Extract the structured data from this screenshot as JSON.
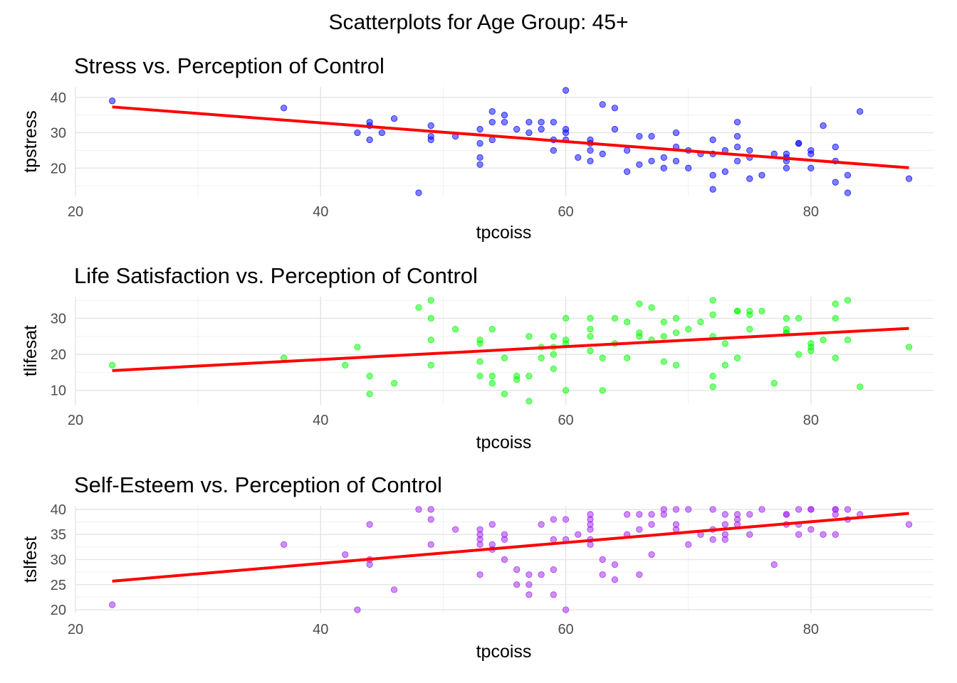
{
  "title": "Scatterplots for Age Group: 45+",
  "colors": {
    "fit_line": "#ff0000"
  },
  "chart_data": [
    {
      "type": "scatter",
      "title": "Stress vs. Perception of Control",
      "xlabel": "tpcoiss",
      "ylabel": "tpstress",
      "xlim": [
        20,
        90
      ],
      "ylim": [
        12,
        43
      ],
      "xticks": [
        20,
        40,
        60,
        80
      ],
      "yticks": [
        20,
        30,
        40
      ],
      "grid": true,
      "point_color": "#0000ff",
      "fit_line": {
        "x": [
          23,
          88
        ],
        "y": [
          37.3,
          20.1
        ]
      },
      "points": [
        [
          23,
          39
        ],
        [
          37,
          37
        ],
        [
          43,
          30
        ],
        [
          44,
          33
        ],
        [
          44,
          32
        ],
        [
          44,
          28
        ],
        [
          45,
          30
        ],
        [
          46,
          34
        ],
        [
          48,
          13
        ],
        [
          49,
          32
        ],
        [
          49,
          29
        ],
        [
          49,
          28
        ],
        [
          51,
          29
        ],
        [
          53,
          31
        ],
        [
          53,
          27
        ],
        [
          53,
          23
        ],
        [
          53,
          21
        ],
        [
          54,
          36
        ],
        [
          54,
          33
        ],
        [
          54,
          28
        ],
        [
          55,
          35
        ],
        [
          55,
          33
        ],
        [
          56,
          31
        ],
        [
          57,
          33
        ],
        [
          57,
          30
        ],
        [
          58,
          33
        ],
        [
          58,
          31
        ],
        [
          59,
          33
        ],
        [
          59,
          28
        ],
        [
          59,
          25
        ],
        [
          60,
          42
        ],
        [
          60,
          31
        ],
        [
          60,
          30
        ],
        [
          60,
          28
        ],
        [
          61,
          23
        ],
        [
          62,
          28
        ],
        [
          62,
          27
        ],
        [
          62,
          25
        ],
        [
          62,
          22
        ],
        [
          63,
          38
        ],
        [
          63,
          24
        ],
        [
          64,
          37
        ],
        [
          64,
          31
        ],
        [
          65,
          25
        ],
        [
          65,
          19
        ],
        [
          66,
          29
        ],
        [
          66,
          21
        ],
        [
          67,
          29
        ],
        [
          67,
          22
        ],
        [
          68,
          23
        ],
        [
          68,
          20
        ],
        [
          69,
          30
        ],
        [
          69,
          26
        ],
        [
          69,
          22
        ],
        [
          70,
          25
        ],
        [
          70,
          20
        ],
        [
          71,
          24
        ],
        [
          72,
          28
        ],
        [
          72,
          24
        ],
        [
          72,
          18
        ],
        [
          72,
          14
        ],
        [
          73,
          25
        ],
        [
          73,
          19
        ],
        [
          74,
          33
        ],
        [
          74,
          29
        ],
        [
          74,
          26
        ],
        [
          74,
          22
        ],
        [
          75,
          25
        ],
        [
          75,
          23
        ],
        [
          75,
          17
        ],
        [
          76,
          18
        ],
        [
          77,
          24
        ],
        [
          78,
          24
        ],
        [
          78,
          23
        ],
        [
          78,
          22
        ],
        [
          78,
          20
        ],
        [
          79,
          27
        ],
        [
          79,
          27
        ],
        [
          80,
          25
        ],
        [
          80,
          24
        ],
        [
          80,
          20
        ],
        [
          81,
          32
        ],
        [
          82,
          26
        ],
        [
          82,
          22
        ],
        [
          82,
          16
        ],
        [
          83,
          18
        ],
        [
          83,
          13
        ],
        [
          84,
          36
        ],
        [
          88,
          17
        ]
      ]
    },
    {
      "type": "scatter",
      "title": "Life Satisfaction vs. Perception of Control",
      "xlabel": "tpcoiss",
      "ylabel": "tlifesat",
      "xlim": [
        20,
        90
      ],
      "ylim": [
        6,
        36
      ],
      "xticks": [
        20,
        40,
        60,
        80
      ],
      "yticks": [
        10,
        20,
        30
      ],
      "grid": true,
      "point_color": "#00ff00",
      "fit_line": {
        "x": [
          23,
          88
        ],
        "y": [
          15.5,
          27.2
        ]
      },
      "points": [
        [
          23,
          17
        ],
        [
          37,
          19
        ],
        [
          42,
          17
        ],
        [
          43,
          22
        ],
        [
          44,
          14
        ],
        [
          44,
          9
        ],
        [
          46,
          12
        ],
        [
          48,
          33
        ],
        [
          49,
          35
        ],
        [
          49,
          30
        ],
        [
          49,
          24
        ],
        [
          49,
          17
        ],
        [
          51,
          27
        ],
        [
          53,
          24
        ],
        [
          53,
          23
        ],
        [
          53,
          18
        ],
        [
          53,
          14
        ],
        [
          54,
          27
        ],
        [
          54,
          14
        ],
        [
          54,
          12
        ],
        [
          55,
          19
        ],
        [
          55,
          9
        ],
        [
          56,
          14
        ],
        [
          56,
          13
        ],
        [
          57,
          25
        ],
        [
          57,
          14
        ],
        [
          57,
          7
        ],
        [
          58,
          22
        ],
        [
          58,
          19
        ],
        [
          59,
          25
        ],
        [
          59,
          22
        ],
        [
          59,
          20
        ],
        [
          59,
          16
        ],
        [
          60,
          30
        ],
        [
          60,
          24
        ],
        [
          60,
          23
        ],
        [
          60,
          10
        ],
        [
          62,
          30
        ],
        [
          62,
          27
        ],
        [
          62,
          25
        ],
        [
          62,
          21
        ],
        [
          63,
          19
        ],
        [
          63,
          10
        ],
        [
          64,
          30
        ],
        [
          64,
          23
        ],
        [
          65,
          29
        ],
        [
          65,
          19
        ],
        [
          66,
          34
        ],
        [
          66,
          25
        ],
        [
          66,
          26
        ],
        [
          67,
          33
        ],
        [
          67,
          24
        ],
        [
          68,
          29
        ],
        [
          68,
          25
        ],
        [
          68,
          18
        ],
        [
          69,
          30
        ],
        [
          69,
          26
        ],
        [
          69,
          17
        ],
        [
          70,
          27
        ],
        [
          71,
          29
        ],
        [
          72,
          35
        ],
        [
          72,
          31
        ],
        [
          72,
          25
        ],
        [
          72,
          14
        ],
        [
          72,
          11
        ],
        [
          73,
          23
        ],
        [
          73,
          17
        ],
        [
          74,
          32
        ],
        [
          74,
          32
        ],
        [
          74,
          19
        ],
        [
          75,
          32
        ],
        [
          75,
          31
        ],
        [
          75,
          27
        ],
        [
          76,
          32
        ],
        [
          77,
          12
        ],
        [
          78,
          30
        ],
        [
          78,
          27
        ],
        [
          78,
          26
        ],
        [
          78,
          26
        ],
        [
          79,
          30
        ],
        [
          79,
          20
        ],
        [
          80,
          23
        ],
        [
          80,
          22
        ],
        [
          80,
          21
        ],
        [
          81,
          24
        ],
        [
          82,
          34
        ],
        [
          82,
          30
        ],
        [
          82,
          19
        ],
        [
          83,
          35
        ],
        [
          83,
          24
        ],
        [
          84,
          11
        ],
        [
          88,
          22
        ]
      ]
    },
    {
      "type": "scatter",
      "title": "Self-Esteem vs. Perception of Control",
      "xlabel": "tpcoiss",
      "ylabel": "tslfest",
      "xlim": [
        20,
        90
      ],
      "ylim": [
        19.3,
        40.7
      ],
      "xticks": [
        20,
        40,
        60,
        80
      ],
      "yticks": [
        20,
        25,
        30,
        35,
        40
      ],
      "grid": true,
      "point_color": "#a020f0",
      "fit_line": {
        "x": [
          23,
          88
        ],
        "y": [
          25.7,
          39.2
        ]
      },
      "points": [
        [
          23,
          21
        ],
        [
          37,
          33
        ],
        [
          42,
          31
        ],
        [
          43,
          20
        ],
        [
          44,
          37
        ],
        [
          44,
          30
        ],
        [
          44,
          29
        ],
        [
          46,
          24
        ],
        [
          48,
          40
        ],
        [
          49,
          40
        ],
        [
          49,
          38
        ],
        [
          49,
          33
        ],
        [
          51,
          36
        ],
        [
          53,
          36
        ],
        [
          53,
          35
        ],
        [
          53,
          34
        ],
        [
          53,
          33
        ],
        [
          53,
          27
        ],
        [
          54,
          37
        ],
        [
          54,
          33
        ],
        [
          54,
          32
        ],
        [
          55,
          35
        ],
        [
          55,
          34
        ],
        [
          55,
          30
        ],
        [
          56,
          28
        ],
        [
          56,
          25
        ],
        [
          57,
          27
        ],
        [
          57,
          25
        ],
        [
          57,
          23
        ],
        [
          58,
          37
        ],
        [
          58,
          27
        ],
        [
          59,
          38
        ],
        [
          59,
          34
        ],
        [
          59,
          28
        ],
        [
          59,
          23
        ],
        [
          60,
          38
        ],
        [
          60,
          34
        ],
        [
          60,
          20
        ],
        [
          61,
          35
        ],
        [
          62,
          39
        ],
        [
          62,
          38
        ],
        [
          62,
          37
        ],
        [
          62,
          36
        ],
        [
          62,
          34
        ],
        [
          62,
          33
        ],
        [
          63,
          30
        ],
        [
          63,
          27
        ],
        [
          64,
          29
        ],
        [
          64,
          26
        ],
        [
          65,
          39
        ],
        [
          65,
          35
        ],
        [
          66,
          39
        ],
        [
          66,
          36
        ],
        [
          66,
          27
        ],
        [
          67,
          39
        ],
        [
          67,
          37
        ],
        [
          67,
          31
        ],
        [
          68,
          40
        ],
        [
          68,
          39
        ],
        [
          69,
          40
        ],
        [
          69,
          37
        ],
        [
          69,
          36
        ],
        [
          70,
          40
        ],
        [
          70,
          33
        ],
        [
          71,
          35
        ],
        [
          72,
          40
        ],
        [
          72,
          36
        ],
        [
          72,
          34
        ],
        [
          73,
          39
        ],
        [
          73,
          37
        ],
        [
          73,
          35
        ],
        [
          73,
          34
        ],
        [
          74,
          39
        ],
        [
          74,
          38
        ],
        [
          74,
          37
        ],
        [
          75,
          39
        ],
        [
          75,
          35
        ],
        [
          76,
          40
        ],
        [
          77,
          29
        ],
        [
          78,
          39
        ],
        [
          78,
          39
        ],
        [
          78,
          37
        ],
        [
          79,
          40
        ],
        [
          79,
          37
        ],
        [
          79,
          35
        ],
        [
          80,
          40
        ],
        [
          80,
          40
        ],
        [
          80,
          36
        ],
        [
          81,
          35
        ],
        [
          82,
          40
        ],
        [
          82,
          40
        ],
        [
          82,
          39
        ],
        [
          82,
          35
        ],
        [
          83,
          40
        ],
        [
          83,
          38
        ],
        [
          84,
          39
        ],
        [
          88,
          37
        ]
      ]
    }
  ]
}
